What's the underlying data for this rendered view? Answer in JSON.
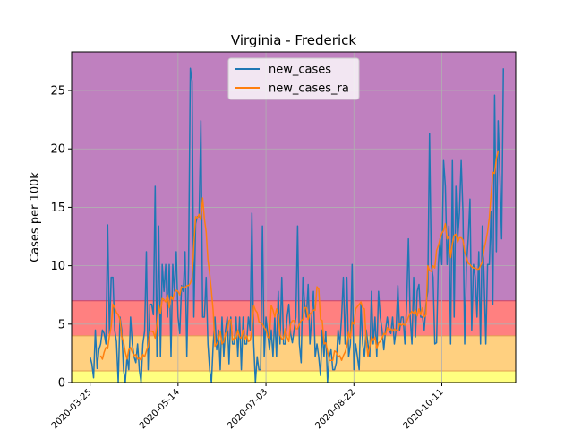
{
  "chart_data": {
    "type": "line",
    "title": "Virginia - Frederick",
    "xlabel": "",
    "ylabel": "Cases per 100k",
    "ylim": [
      0,
      28.3
    ],
    "yticks": [
      0,
      5,
      10,
      15,
      20,
      25
    ],
    "xticks": [
      {
        "day": 0,
        "label": "2020-03-25"
      },
      {
        "day": 50,
        "label": "2020-05-14"
      },
      {
        "day": 100,
        "label": "2020-07-03"
      },
      {
        "day": 150,
        "label": "2020-08-22"
      },
      {
        "day": 200,
        "label": "2020-10-11"
      }
    ],
    "xlim_days": [
      -10.5,
      242
    ],
    "grid": true,
    "legend_position": "top-center",
    "bands": [
      {
        "from": 0,
        "to": 1,
        "color": "#ffff80"
      },
      {
        "from": 1,
        "to": 4,
        "color": "#ffd080"
      },
      {
        "from": 4,
        "to": 7,
        "color": "#ff8080"
      },
      {
        "from": 7,
        "to": 28.3,
        "color": "#bf80bf"
      }
    ],
    "series": [
      {
        "name": "new_cases",
        "color": "#1f77b4",
        "start_day": 0,
        "values": [
          2.2,
          1.6,
          0.4,
          4.5,
          1.2,
          2.8,
          3.3,
          4.5,
          4.2,
          3.3,
          13.5,
          4.2,
          9.0,
          9.0,
          4.5,
          3.5,
          0.0,
          5.6,
          4.5,
          1.1,
          0.0,
          2.2,
          1.1,
          5.6,
          3.3,
          2.2,
          1.7,
          3.3,
          1.1,
          0.0,
          3.3,
          4.4,
          11.2,
          1.1,
          6.7,
          6.7,
          5.8,
          16.8,
          2.2,
          13.4,
          2.2,
          10.1,
          7.8,
          10.1,
          5.6,
          10.1,
          2.2,
          10.1,
          7.8,
          11.2,
          5.6,
          4.2,
          8.3,
          7.8,
          11.2,
          2.2,
          10.1,
          26.9,
          25.8,
          5.6,
          13.6,
          14.2,
          14.2,
          22.4,
          5.6,
          5.6,
          9.0,
          3.3,
          1.1,
          0.0,
          3.3,
          5.6,
          2.8,
          4.5,
          1.1,
          5.6,
          2.2,
          4.5,
          5.6,
          1.6,
          5.6,
          3.3,
          3.3,
          5.6,
          2.2,
          5.6,
          1.1,
          5.6,
          3.3,
          3.3,
          5.6,
          4.5,
          14.5,
          3.4,
          0.0,
          2.2,
          1.1,
          1.1,
          13.4,
          2.2,
          5.6,
          4.2,
          2.8,
          4.5,
          2.2,
          5.6,
          2.2,
          7.8,
          3.3,
          9.0,
          3.3,
          3.3,
          5.6,
          6.7,
          4.2,
          3.4,
          4.5,
          5.6,
          13.4,
          3.3,
          1.7,
          9.0,
          6.7,
          5.6,
          8.4,
          3.3,
          5.6,
          7.8,
          2.2,
          3.3,
          2.2,
          0.6,
          4.5,
          2.2,
          4.4,
          0.0,
          2.2,
          2.8,
          1.1,
          1.1,
          1.7,
          4.5,
          3.3,
          5.6,
          9.0,
          3.3,
          9.0,
          2.2,
          3.3,
          10.1,
          1.1,
          3.3,
          2.2,
          1.1,
          6.7,
          3.3,
          2.2,
          4.5,
          3.3,
          2.2,
          7.8,
          3.3,
          5.6,
          2.2,
          7.8,
          5.6,
          4.5,
          2.8,
          4.5,
          5.6,
          4.5,
          4.2,
          5.6,
          3.3,
          4.5,
          8.3,
          4.5,
          5.6,
          5.6,
          3.3,
          6.7,
          12.3,
          5.6,
          3.3,
          9.0,
          3.9,
          7.8,
          8.4,
          5.6,
          5.6,
          4.5,
          6.7,
          7.8,
          21.3,
          10.1,
          9.0,
          3.3,
          3.4,
          10.1,
          12.3,
          10.1,
          19.0,
          16.8,
          10.1,
          13.4,
          3.3,
          19.0,
          5.6,
          16.8,
          12.3,
          14.5,
          19.0,
          14.6,
          3.3,
          10.1,
          12.3,
          15.7,
          4.5,
          10.1,
          9.0,
          5.6,
          11.2,
          3.3,
          13.4,
          9.0,
          3.3,
          10.1,
          10.1,
          14.6,
          6.7,
          24.6,
          11.2,
          22.4,
          17.9,
          12.3,
          26.9
        ]
      },
      {
        "name": "new_cases_ra",
        "color": "#ff7f0e",
        "start_day": 6,
        "values": [
          2.3,
          2.0,
          2.6,
          3.0,
          2.9,
          4.0,
          4.8,
          6.7,
          6.4,
          6.0,
          5.8,
          5.4,
          3.9,
          3.5,
          2.6,
          2.0,
          2.8,
          3.0,
          2.6,
          2.3,
          2.4,
          2.0,
          2.1,
          1.9,
          2.4,
          2.2,
          2.7,
          3.1,
          4.4,
          4.4,
          4.3,
          3.8,
          5.0,
          6.6,
          5.9,
          7.2,
          7.1,
          6.9,
          7.5,
          6.4,
          7.4,
          7.1,
          7.7,
          7.9,
          7.8,
          7.5,
          8.2,
          8.1,
          8.1,
          8.3,
          8.3,
          8.5,
          9.0,
          11.8,
          14.2,
          14.1,
          14.4,
          13.9,
          15.8,
          14.0,
          12.9,
          10.5,
          9.3,
          7.8,
          6.1,
          3.1,
          3.3,
          3.6,
          4.4,
          3.3,
          3.5,
          4.2,
          4.4,
          5.3,
          5.4,
          3.6,
          3.8,
          3.8,
          4.5,
          3.9,
          3.8,
          4.5,
          3.7,
          4.0,
          3.5,
          3.6,
          4.4,
          6.6,
          6.2,
          6.0,
          5.2,
          5.1,
          5.0,
          4.7,
          4.5,
          3.9,
          3.8,
          6.6,
          6.2,
          5.6,
          6.3,
          5.8,
          4.1,
          3.7,
          3.8,
          4.6,
          3.9,
          3.5,
          5.0,
          5.3,
          5.3,
          4.6,
          4.6,
          5.0,
          5.3,
          5.4,
          6.4,
          6.4,
          5.4,
          5.9,
          6.0,
          6.2,
          6.2,
          8.2,
          8.0,
          5.4,
          5.3,
          3.3,
          3.4,
          2.7,
          1.9,
          1.9,
          1.9,
          2.7,
          2.6,
          2.2,
          2.3,
          1.9,
          2.3,
          2.6,
          3.1,
          4.3,
          3.8,
          5.2,
          5.0,
          6.3,
          6.5,
          6.7,
          6.9,
          6.4,
          6.3,
          3.6,
          2.2,
          3.1,
          3.9,
          3.6,
          3.9,
          2.9,
          3.4,
          3.5,
          3.8,
          4.2,
          4.1,
          4.7,
          4.5,
          4.6,
          4.4,
          4.6,
          4.5,
          4.4,
          5.1,
          4.9,
          5.0,
          4.9,
          5.2,
          5.6,
          5.9,
          6.1,
          5.9,
          6.2,
          5.7,
          6.3,
          5.8,
          6.4,
          5.6,
          5.8,
          10.0,
          9.6,
          9.5,
          10.0,
          9.8,
          11.3,
          11.7,
          12.3,
          12.8,
          13.0,
          13.6,
          12.3,
          12.5,
          10.7,
          11.9,
          12.6,
          12.7,
          12.0,
          12.4,
          12.4,
          12.2,
          11.2,
          10.7,
          10.2,
          10.1,
          9.9,
          9.8,
          9.8,
          9.7,
          9.7,
          10.0,
          10.3,
          11.4,
          12.1,
          12.9,
          14.1,
          16.1,
          18.0,
          17.9,
          19.2,
          19.8
        ]
      }
    ]
  }
}
